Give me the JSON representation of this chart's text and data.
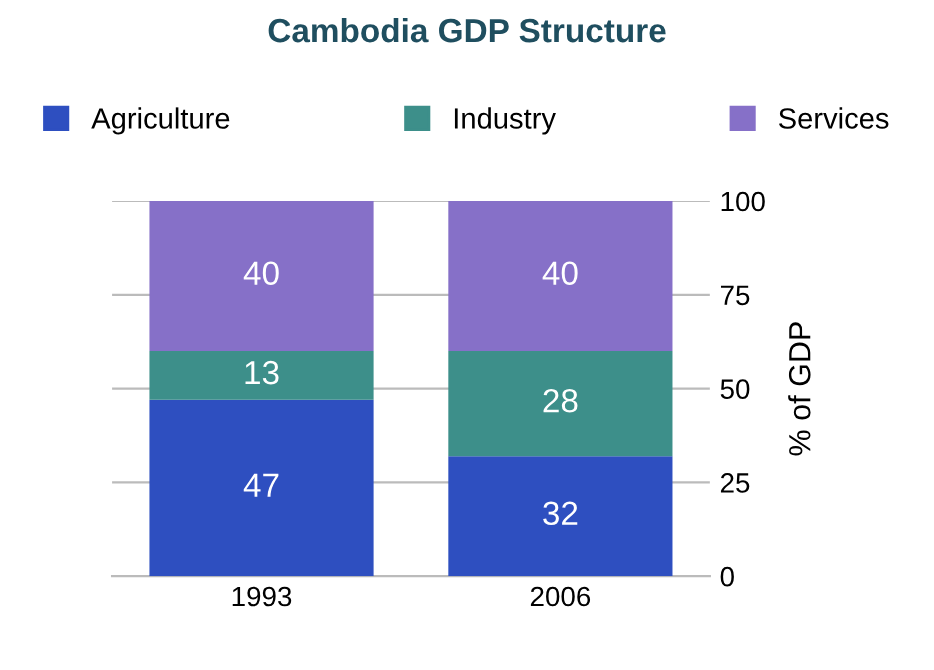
{
  "chart_data": {
    "type": "bar",
    "title": "Cambodia GDP Structure",
    "ylabel": "% of GDP",
    "categories": [
      "1993",
      "2006"
    ],
    "stacked": true,
    "series": [
      {
        "name": "Agriculture",
        "color": "#2e4fc0",
        "values": [
          47,
          32
        ]
      },
      {
        "name": "Industry",
        "color": "#3d8f8a",
        "values": [
          13,
          28
        ]
      },
      {
        "name": "Services",
        "color": "#8670c8",
        "values": [
          40,
          40
        ]
      }
    ],
    "ylim": [
      0,
      100
    ],
    "yticks": [
      0,
      25,
      50,
      75,
      100
    ],
    "grid": "y",
    "legend": "top",
    "data_labels": true
  }
}
